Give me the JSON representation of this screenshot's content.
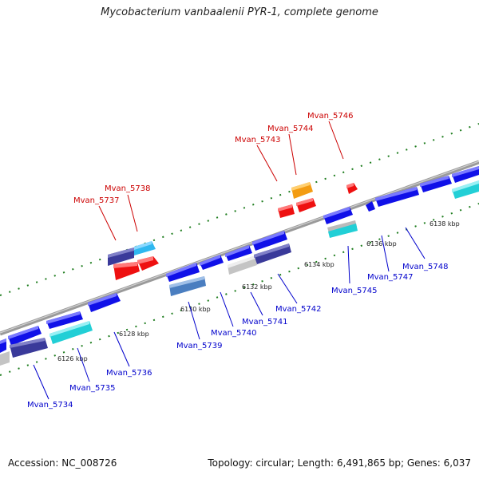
{
  "title": "Mycobacterium vanbaalenii PYR-1, complete genome",
  "footer": {
    "accession": "Accession: NC_008726",
    "summary": "Topology: circular; Length: 6,491,865 bp; Genes: 6,037"
  },
  "colors": {
    "backbone": "#8c8c8c",
    "tick": "#1e7d1e",
    "forward_label": "#cc0000",
    "reverse_label": "#0000cc",
    "blue": "#1010e8",
    "navy": "#3a3a9a",
    "red": "#ee1010",
    "orange": "#f39c12",
    "cyan": "#22cfd6",
    "skyblue": "#2fb8f0",
    "steel": "#4a7ec0",
    "gray": "#c4c4c4"
  },
  "kbp_ticks": [
    "6126 kbp",
    "6128 kbp",
    "6130 kbp",
    "6132 kbp",
    "6134 kbp",
    "6136 kbp",
    "6138 kbp"
  ],
  "forward_genes": [
    "Mvan_5737",
    "Mvan_5738",
    "Mvan_5743",
    "Mvan_5744",
    "Mvan_5746"
  ],
  "reverse_genes": [
    "Mvan_5734",
    "Mvan_5735",
    "Mvan_5736",
    "Mvan_5739",
    "Mvan_5740",
    "Mvan_5741",
    "Mvan_5742",
    "Mvan_5745",
    "Mvan_5747",
    "Mvan_5748"
  ]
}
